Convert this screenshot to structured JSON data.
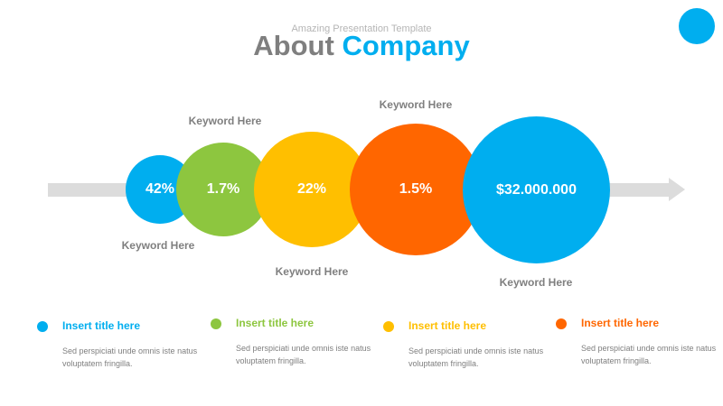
{
  "header": {
    "subtitle": "Amazing Presentation Template",
    "title_part1": "About",
    "title_part2": "Company"
  },
  "bubbles": [
    {
      "value": "42%",
      "keyword": "Keyword Here",
      "color": "#00aeef"
    },
    {
      "value": "1.7%",
      "keyword": "Keyword Here",
      "color": "#8dc63f"
    },
    {
      "value": "22%",
      "keyword": "Keyword Here",
      "color": "#ffbf00"
    },
    {
      "value": "1.5%",
      "keyword": "Keyword Here",
      "color": "#ff6600"
    },
    {
      "value": "$32.000.000",
      "keyword": "Keyword Here",
      "color": "#00aeef"
    }
  ],
  "items": [
    {
      "title": "Insert title here",
      "text": "Sed perspiciati unde omnis iste natus voluptatem fringilla.",
      "color": "#00aeef"
    },
    {
      "title": "Insert title here",
      "text": "Sed perspiciati unde omnis iste natus voluptatem fringilla.",
      "color": "#8dc63f"
    },
    {
      "title": "Insert title here",
      "text": "Sed perspiciati unde omnis iste natus voluptatem fringilla.",
      "color": "#ffbf00"
    },
    {
      "title": "Insert title here",
      "text": "Sed perspiciati unde omnis iste natus voluptatem fringilla.",
      "color": "#ff6600"
    }
  ]
}
